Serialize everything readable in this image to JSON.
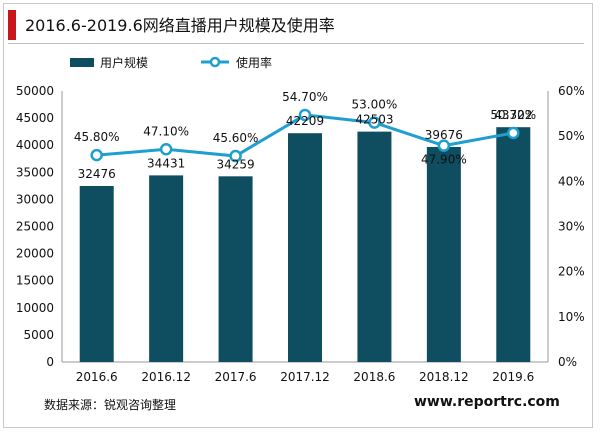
{
  "header": {
    "title": "2016.6-2019.6网络直播用户规模及使用率"
  },
  "legend": {
    "bar_label": "用户规模",
    "line_label": "使用率"
  },
  "chart_data": {
    "type": "bar",
    "title": "2016.6-2019.6网络直播用户规模及使用率",
    "categories": [
      "2016.6",
      "2016.12",
      "2017.6",
      "2017.12",
      "2018.6",
      "2018.12",
      "2019.6"
    ],
    "series": [
      {
        "name": "用户规模",
        "type": "bar",
        "axis": "left",
        "values": [
          32476,
          34431,
          34259,
          42209,
          42503,
          39676,
          43322
        ],
        "labels": [
          "32476",
          "34431",
          "34259",
          "42209",
          "42503",
          "39676",
          "43322"
        ],
        "color": "#0f4d61"
      },
      {
        "name": "使用率",
        "type": "line",
        "axis": "right",
        "values": [
          45.8,
          47.1,
          45.6,
          54.7,
          53.0,
          47.9,
          50.7
        ],
        "labels": [
          "45.80%",
          "47.10%",
          "45.60%",
          "54.70%",
          "53.00%",
          "47.90%",
          "50.70%"
        ],
        "color": "#1f9fcf"
      }
    ],
    "y_left": {
      "min": 0,
      "max": 50000,
      "ticks": [
        "0",
        "5000",
        "10000",
        "15000",
        "20000",
        "25000",
        "30000",
        "35000",
        "40000",
        "45000",
        "50000"
      ]
    },
    "y_right": {
      "min": 0,
      "max": 60,
      "ticks": [
        "0%",
        "10%",
        "20%",
        "30%",
        "40%",
        "50%",
        "60%"
      ]
    },
    "grid": false,
    "legend_position": "top-left"
  },
  "footer": {
    "source": "数据来源：锐观咨询整理",
    "website": "www.reportrc.com"
  }
}
